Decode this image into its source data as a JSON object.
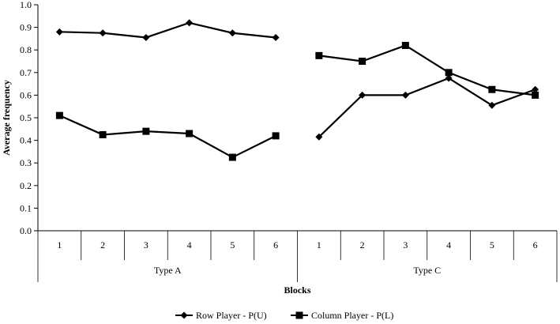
{
  "chart_data": {
    "type": "line",
    "title": "",
    "ylabel": "Average frequency",
    "xlabel": "Blocks",
    "ylim": [
      0,
      1
    ],
    "y_ticks": [
      "0.0",
      "0.1",
      "0.2",
      "0.3",
      "0.4",
      "0.5",
      "0.6",
      "0.7",
      "0.8",
      "0.9",
      "1.0"
    ],
    "grid": false,
    "legend_position": "bottom",
    "groups": [
      {
        "label": "Type A",
        "categories": [
          "1",
          "2",
          "3",
          "4",
          "5",
          "6"
        ]
      },
      {
        "label": "Type C",
        "categories": [
          "1",
          "2",
          "3",
          "4",
          "5",
          "6"
        ]
      }
    ],
    "series": [
      {
        "name": "Row Player - P(U)",
        "marker": "diamond",
        "color": "#000000",
        "values": [
          [
            0.88,
            0.875,
            0.855,
            0.92,
            0.875,
            0.855
          ],
          [
            0.415,
            0.6,
            0.6,
            0.675,
            0.555,
            0.625
          ]
        ]
      },
      {
        "name": "Column Player - P(L)",
        "marker": "square",
        "color": "#000000",
        "values": [
          [
            0.51,
            0.425,
            0.44,
            0.43,
            0.325,
            0.42
          ],
          [
            0.775,
            0.75,
            0.82,
            0.7,
            0.625,
            0.6
          ]
        ]
      }
    ]
  }
}
